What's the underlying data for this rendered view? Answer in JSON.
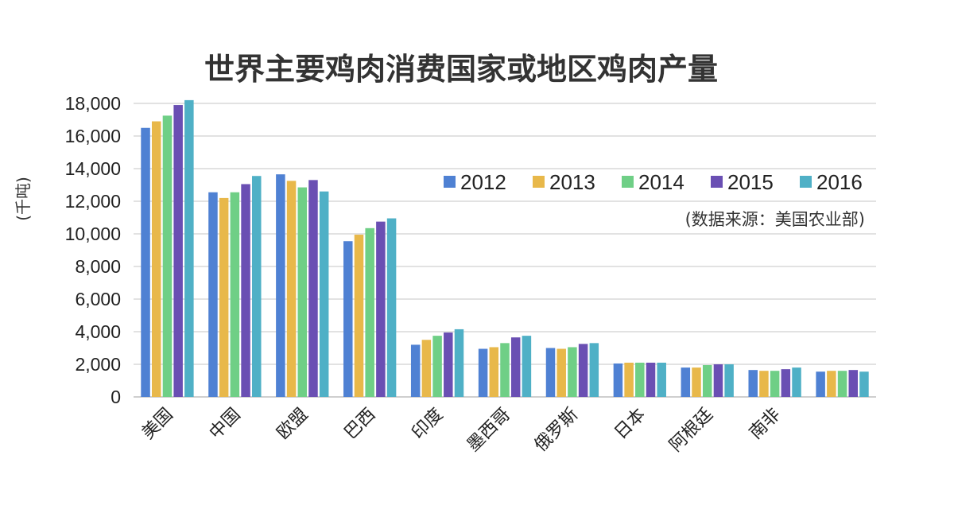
{
  "chart_data": {
    "type": "bar",
    "title": "世界主要鸡肉消费国家或地区鸡肉产量",
    "ylabel": "(千吨)",
    "xlabel": "",
    "source_note": "(数据来源：美国农业部)",
    "ylim": [
      0,
      18000
    ],
    "yticks": [
      0,
      2000,
      4000,
      6000,
      8000,
      10000,
      12000,
      14000,
      16000,
      18000
    ],
    "ytick_labels": [
      "0",
      "2,000",
      "4,000",
      "6,000",
      "8,000",
      "10,000",
      "12,000",
      "14,000",
      "16,000",
      "18,000"
    ],
    "grid": true,
    "legend_position": "top-right",
    "categories": [
      "美国",
      "中国",
      "欧盟",
      "巴西",
      "印度",
      "墨西哥",
      "俄罗斯",
      "日本",
      "阿根廷",
      "南非",
      ""
    ],
    "series": [
      {
        "name": "2012",
        "color": "#4f81d3",
        "values": [
          16500,
          12550,
          13650,
          9550,
          3200,
          2950,
          3000,
          2050,
          1800,
          1650,
          1550
        ]
      },
      {
        "name": "2013",
        "color": "#e8b84a",
        "values": [
          16900,
          12200,
          13250,
          9950,
          3500,
          3050,
          2950,
          2100,
          1800,
          1600,
          1600
        ]
      },
      {
        "name": "2014",
        "color": "#6fcf86",
        "values": [
          17250,
          12550,
          12850,
          10350,
          3750,
          3300,
          3050,
          2100,
          1950,
          1600,
          1600
        ]
      },
      {
        "name": "2015",
        "color": "#6a4fb3",
        "values": [
          17900,
          13050,
          13300,
          10750,
          3950,
          3650,
          3250,
          2100,
          2000,
          1700,
          1650
        ]
      },
      {
        "name": "2016",
        "color": "#4fb0c6",
        "values": [
          18200,
          13550,
          12600,
          10950,
          4150,
          3750,
          3300,
          2100,
          2000,
          1800,
          1550
        ]
      }
    ]
  }
}
